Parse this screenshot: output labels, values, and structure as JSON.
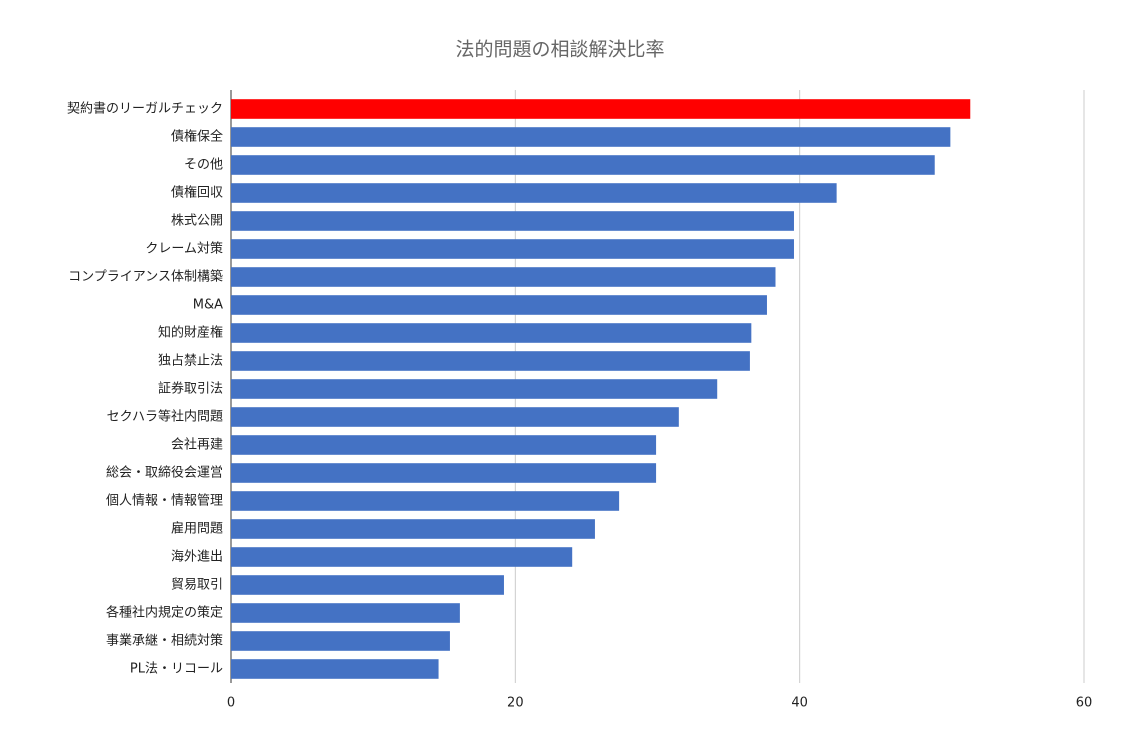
{
  "chart_data": {
    "type": "bar",
    "orientation": "horizontal",
    "title": "法的問題の相談解決比率",
    "categories": [
      "契約書のリーガルチェック",
      "債権保全",
      "その他",
      "債権回収",
      "株式公開",
      "クレーム対策",
      "コンプライアンス体制構築",
      "M&A",
      "知的財産権",
      "独占禁止法",
      "証券取引法",
      "セクハラ等社内問題",
      "会社再建",
      "総会・取締役会運営",
      "個人情報・情報管理",
      "雇用問題",
      "海外進出",
      "貿易取引",
      "各種社内規定の策定",
      "事業承継・相続対策",
      "PL法・リコール"
    ],
    "values": [
      52.0,
      50.6,
      49.5,
      42.6,
      39.6,
      39.6,
      38.3,
      37.7,
      36.6,
      36.5,
      34.2,
      31.5,
      29.9,
      29.9,
      27.3,
      25.6,
      24.0,
      19.2,
      16.1,
      15.4,
      14.6
    ],
    "colors": [
      "#ff0000",
      "#4472c4",
      "#4472c4",
      "#4472c4",
      "#4472c4",
      "#4472c4",
      "#4472c4",
      "#4472c4",
      "#4472c4",
      "#4472c4",
      "#4472c4",
      "#4472c4",
      "#4472c4",
      "#4472c4",
      "#4472c4",
      "#4472c4",
      "#4472c4",
      "#4472c4",
      "#4472c4",
      "#4472c4",
      "#4472c4"
    ],
    "xlim": [
      0,
      60
    ],
    "xticks": [
      0,
      20,
      40,
      60
    ],
    "grid": true
  }
}
